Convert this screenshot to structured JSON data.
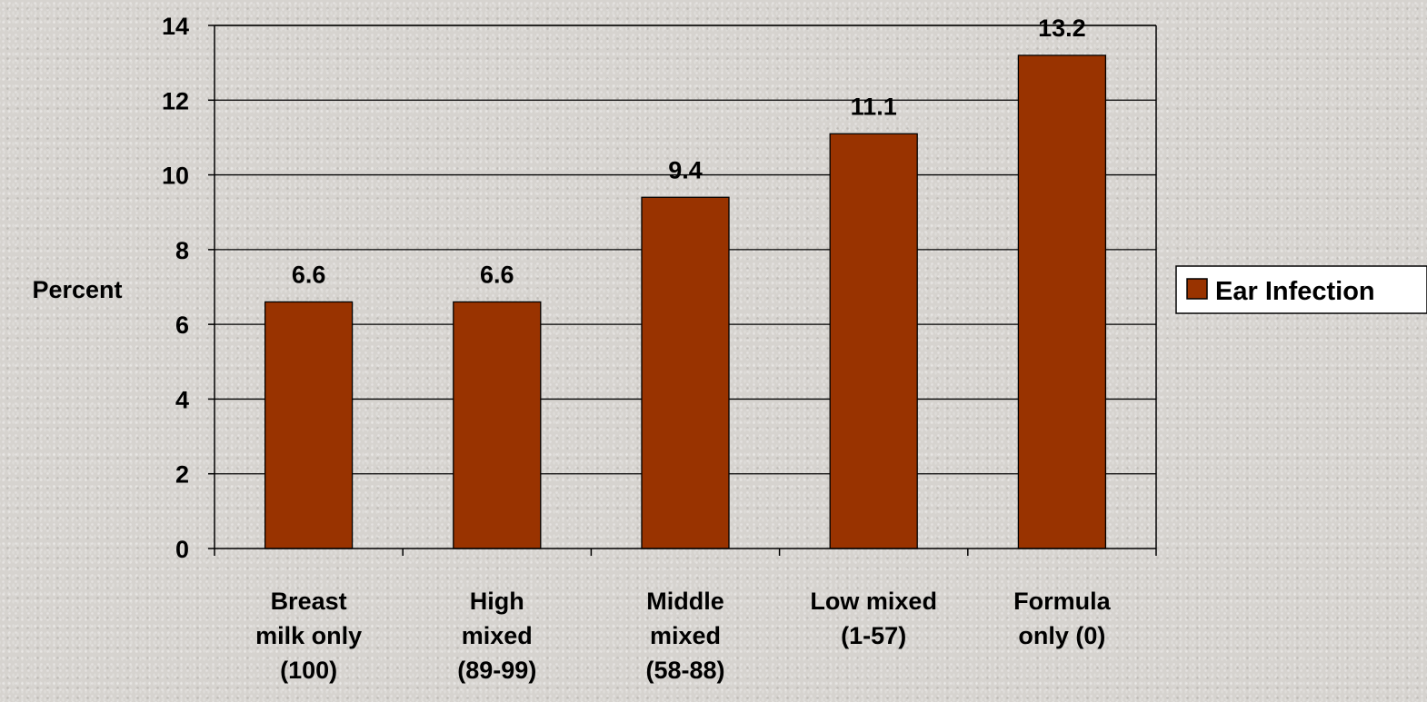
{
  "chart_data": {
    "type": "bar",
    "categories": [
      [
        "Breast",
        "milk only",
        "(100)"
      ],
      [
        "High",
        "mixed",
        "(89-99)"
      ],
      [
        "Middle",
        "mixed",
        "(58-88)"
      ],
      [
        "Low mixed",
        "(1-57)"
      ],
      [
        "Formula",
        "only (0)"
      ]
    ],
    "series": [
      {
        "name": "Ear Infection",
        "values": [
          6.6,
          6.6,
          9.4,
          11.1,
          13.2
        ],
        "color": "#993300"
      }
    ],
    "ylabel": "Percent",
    "ylim": [
      0,
      14
    ],
    "yticks": [
      0,
      2,
      4,
      6,
      8,
      10,
      12,
      14
    ],
    "data_labels": [
      "6.6",
      "6.6",
      "9.4",
      "11.1",
      "13.2"
    ],
    "grid": true,
    "legend_position": "right"
  }
}
